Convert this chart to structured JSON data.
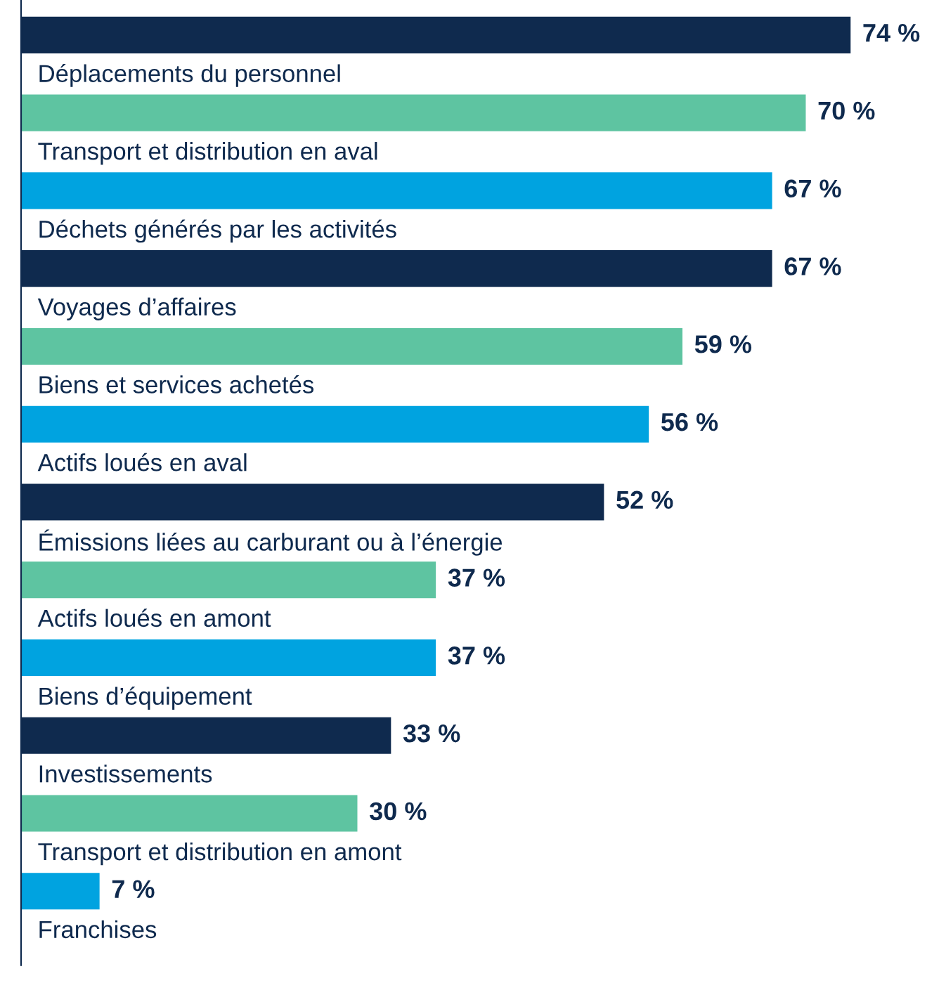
{
  "chart_data": {
    "type": "bar",
    "orientation": "horizontal",
    "data_labels": true,
    "value_labels": [
      "74 %",
      "70 %",
      "67 %",
      "67 %",
      "59 %",
      "56 %",
      "52 %",
      "37 %",
      "37 %",
      "33 %",
      "30 %",
      "7 %"
    ],
    "categories": [
      "Déplacements du personnel",
      "Transport et distribution en aval",
      "Déchets générés par les activités",
      "Voyages d’affaires",
      "Biens et services achetés",
      "Actifs loués en aval",
      "Émissions liées au carburant ou à l’énergie",
      "Actifs loués en amont",
      "Biens d’équipement",
      "Investissements",
      "Transport et distribution en amont",
      "Franchises"
    ],
    "values": [
      74,
      70,
      67,
      67,
      59,
      56,
      52,
      37,
      37,
      33,
      30,
      7
    ],
    "colors": [
      "#0f2a4e",
      "#5ec4a1",
      "#00a3e0",
      "#0f2a4e",
      "#5ec4a1",
      "#00a3e0",
      "#0f2a4e",
      "#5ec4a1",
      "#00a3e0",
      "#0f2a4e",
      "#5ec4a1",
      "#00a3e0"
    ],
    "legend": false
  }
}
